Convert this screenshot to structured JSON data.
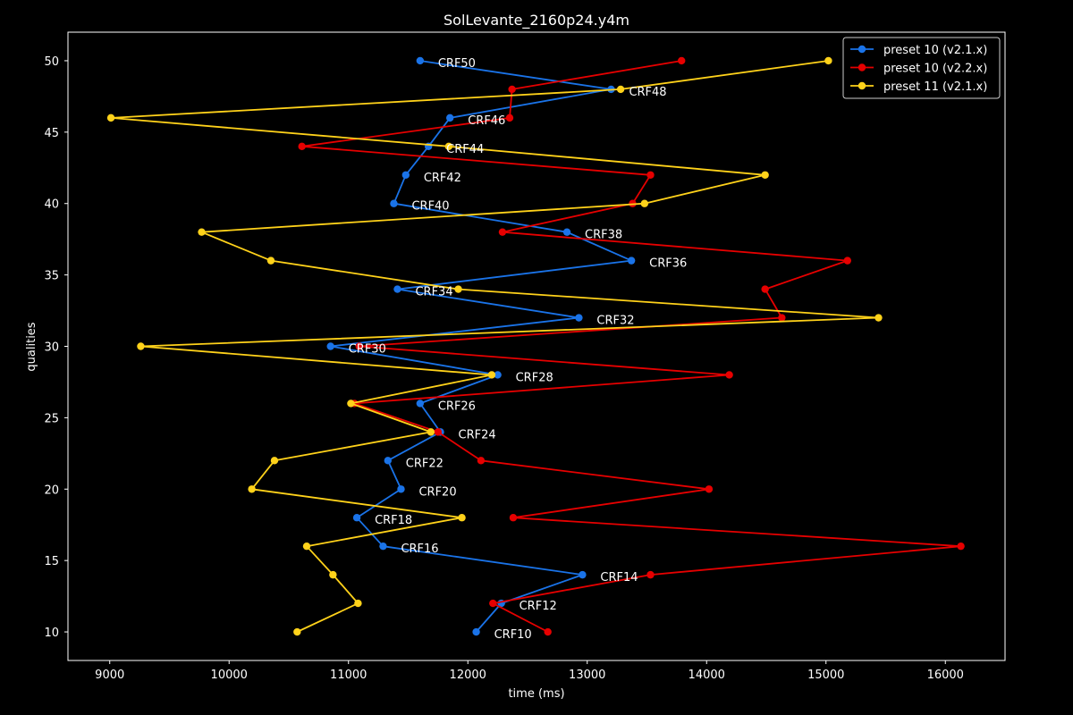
{
  "chart_data": {
    "type": "line",
    "title": "SolLevante_2160p24.y4m",
    "xlabel": "time (ms)",
    "ylabel": "qualities",
    "xlim": [
      8650,
      16500
    ],
    "ylim": [
      8,
      52
    ],
    "xticks": [
      9000,
      10000,
      11000,
      12000,
      13000,
      14000,
      15000,
      16000
    ],
    "yticks": [
      10,
      15,
      20,
      25,
      30,
      35,
      40,
      45,
      50
    ],
    "grid": false,
    "legend_position": "top-right",
    "y": [
      50,
      48,
      46,
      44,
      42,
      40,
      38,
      36,
      34,
      32,
      30,
      28,
      26,
      24,
      22,
      20,
      18,
      16,
      14,
      12,
      10
    ],
    "point_labels": [
      "CRF50",
      "CRF48",
      "CRF46",
      "CRF44",
      "CRF42",
      "CRF40",
      "CRF38",
      "CRF36",
      "CRF34",
      "CRF32",
      "CRF30",
      "CRF28",
      "CRF26",
      "CRF24",
      "CRF22",
      "CRF20",
      "CRF18",
      "CRF16",
      "CRF14",
      "CRF12",
      "CRF10"
    ],
    "series": [
      {
        "name": "preset 10 (v2.1.x)",
        "color": "#1a73e8",
        "x": [
          11600,
          13200,
          11850,
          11670,
          11480,
          11380,
          12830,
          13370,
          11410,
          12930,
          10850,
          12250,
          11600,
          11770,
          11330,
          11440,
          11070,
          11290,
          12960,
          12280,
          12070
        ]
      },
      {
        "name": "preset 10 (v2.2.x)",
        "color": "#e60000",
        "x": [
          13790,
          12370,
          12350,
          10610,
          13530,
          13380,
          12290,
          15180,
          14490,
          14630,
          11090,
          14190,
          11050,
          11750,
          12110,
          14020,
          12380,
          16130,
          13530,
          12210,
          12670
        ]
      },
      {
        "name": "preset 11 (v2.1.x)",
        "color": "#ffd21a",
        "x": [
          15020,
          13280,
          9010,
          11840,
          14490,
          13480,
          9770,
          10350,
          11920,
          15440,
          9260,
          12200,
          11020,
          11690,
          10380,
          10190,
          11950,
          10650,
          10870,
          11080,
          10570
        ]
      }
    ]
  }
}
